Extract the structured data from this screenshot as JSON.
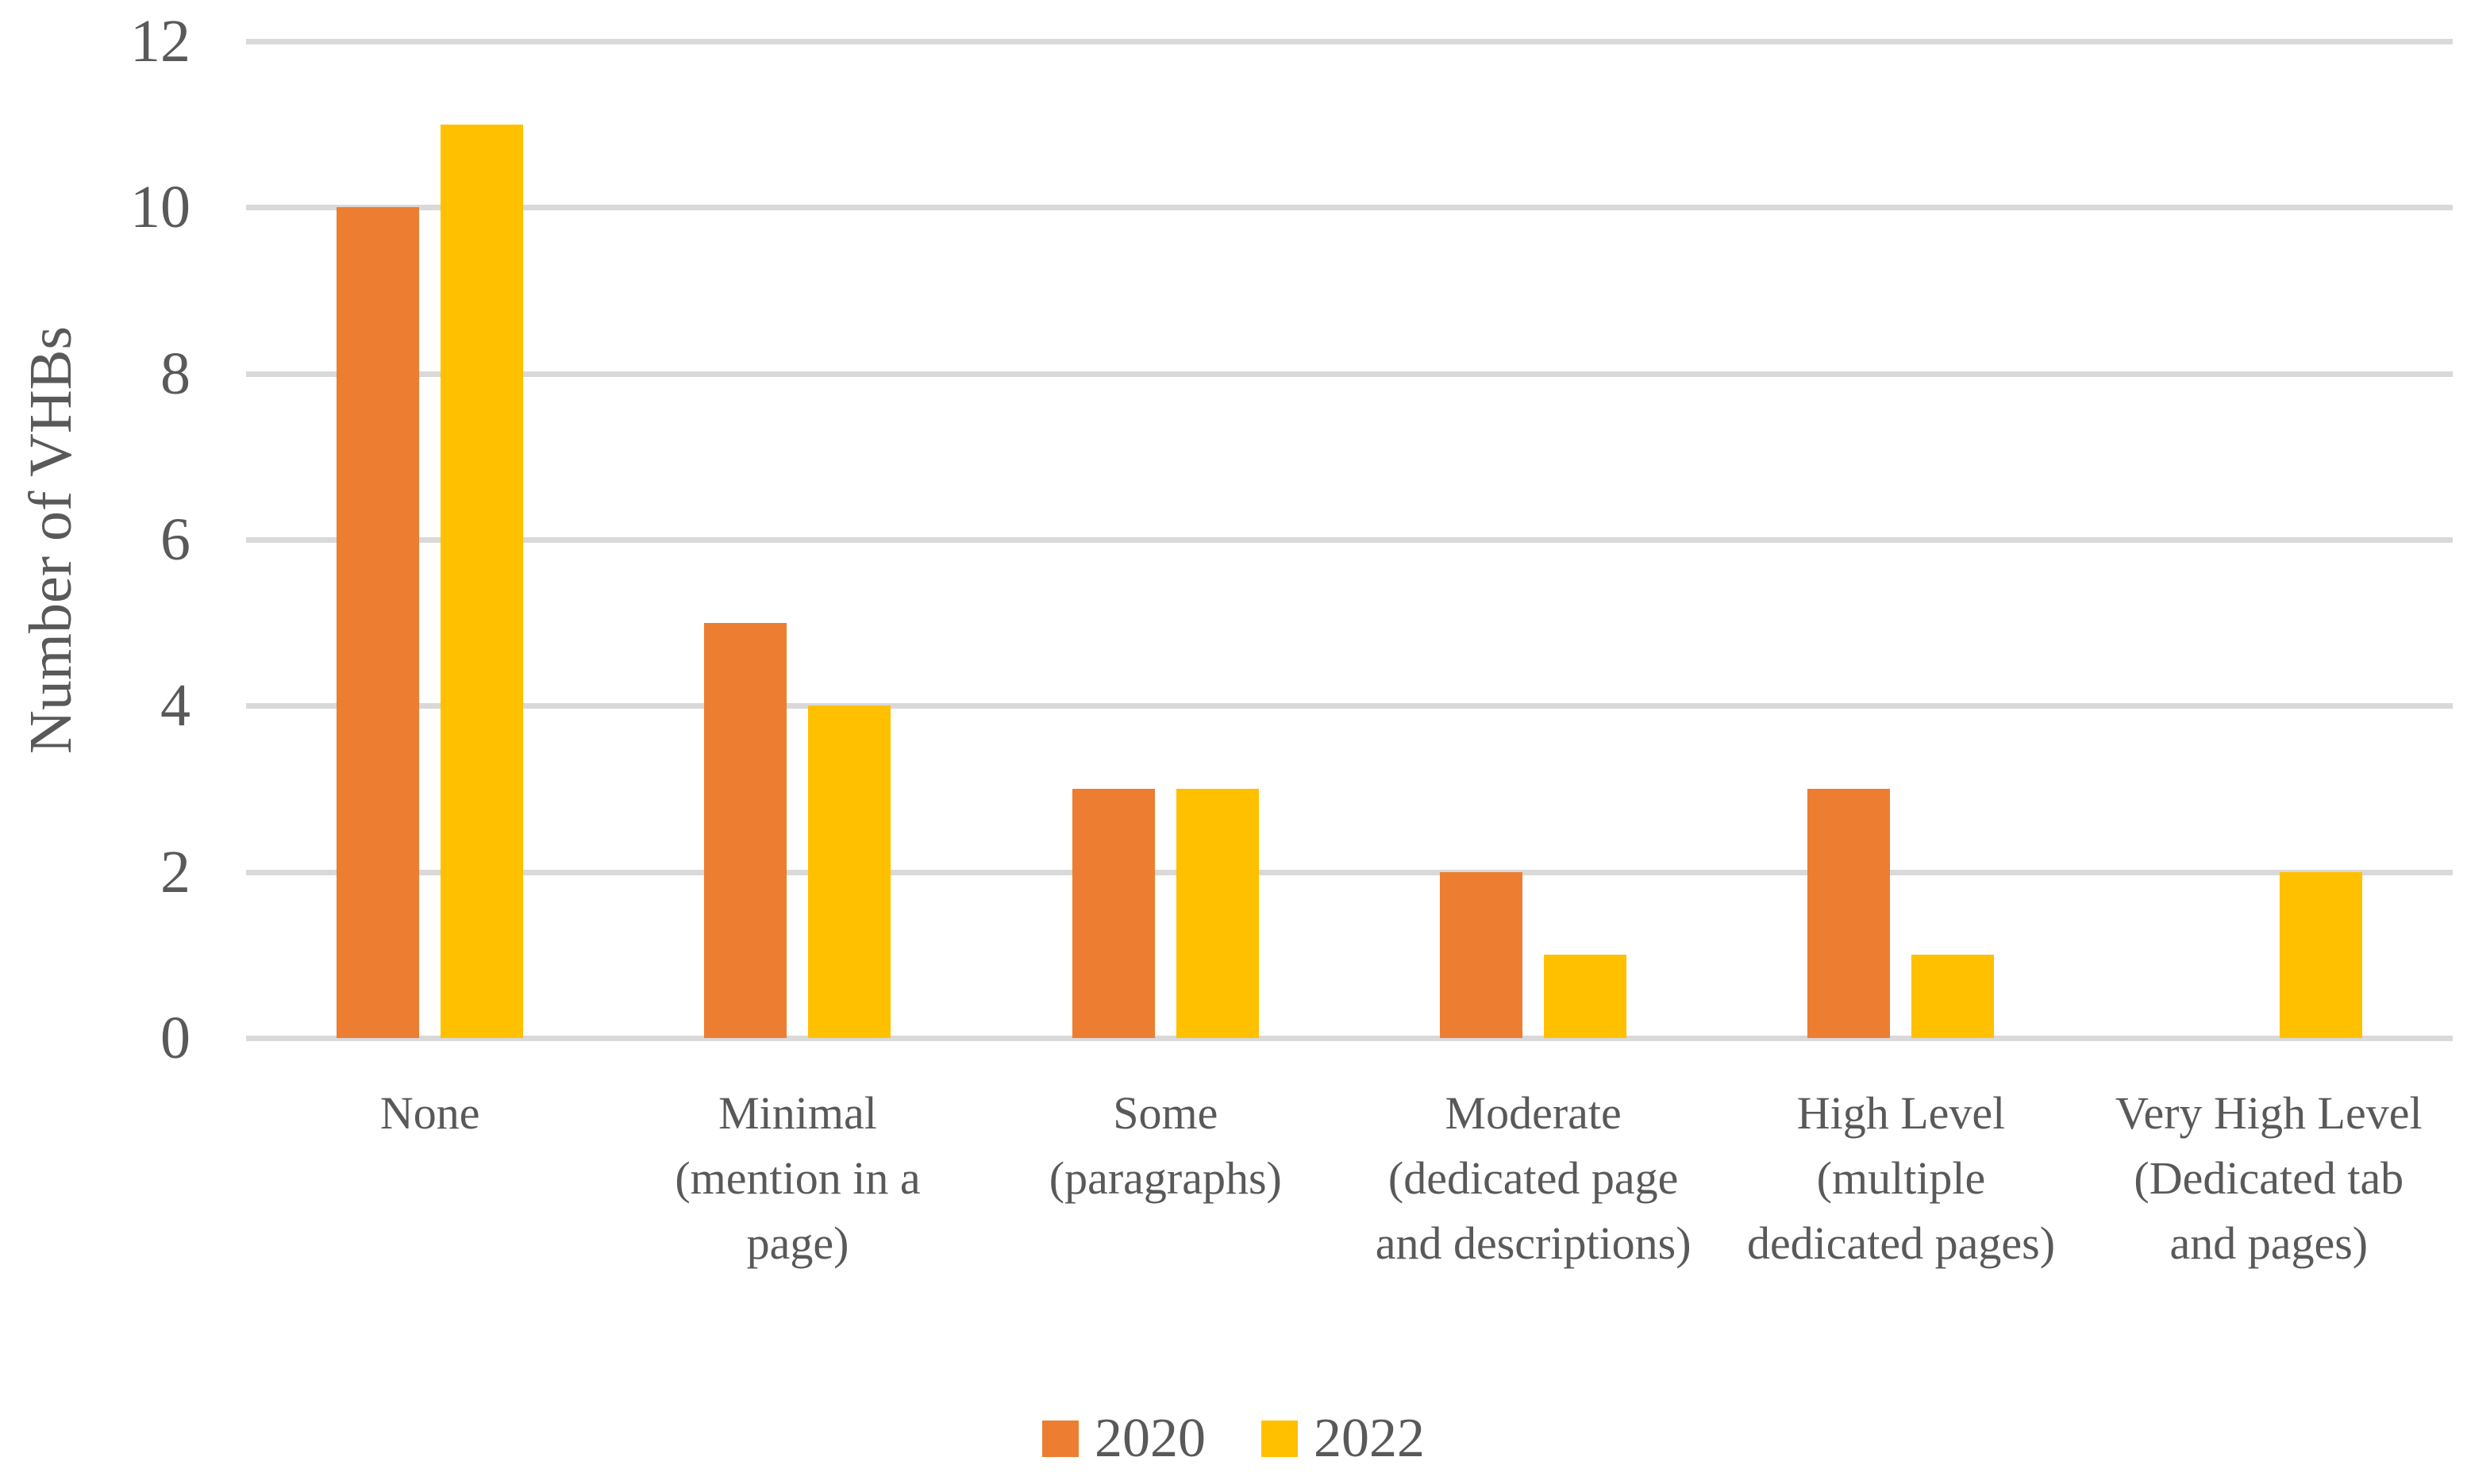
{
  "chart_data": {
    "type": "bar",
    "ylabel": "Number of VHBs",
    "xlabel": "",
    "ylim": [
      0,
      12
    ],
    "yticks": [
      0,
      2,
      4,
      6,
      8,
      10,
      12
    ],
    "grid": true,
    "legend_position": "bottom",
    "categories": [
      "None",
      "Minimal (mention in a page)",
      "Some (paragraphs)",
      "Moderate (dedicated page and descriptions)",
      "High Level (multiple dedicated pages)",
      "Very High Level (Dedicated tab and pages)"
    ],
    "category_label_lines": [
      [
        "None"
      ],
      [
        "Minimal",
        "(mention in a",
        "page)"
      ],
      [
        "Some",
        "(paragraphs)"
      ],
      [
        "Moderate",
        "(dedicated page",
        "and descriptions)"
      ],
      [
        "High Level",
        "(multiple",
        "dedicated pages)"
      ],
      [
        "Very High Level",
        "(Dedicated tab",
        "and pages)"
      ]
    ],
    "series": [
      {
        "name": "2020",
        "color": "#ED7D31",
        "values": [
          10,
          5,
          3,
          2,
          3,
          0
        ]
      },
      {
        "name": "2022",
        "color": "#FFC000",
        "values": [
          11,
          4,
          3,
          1,
          1,
          2
        ]
      }
    ]
  },
  "colors": {
    "grid": "#D9D9D9",
    "text": "#595959",
    "background": "#FFFFFF"
  }
}
